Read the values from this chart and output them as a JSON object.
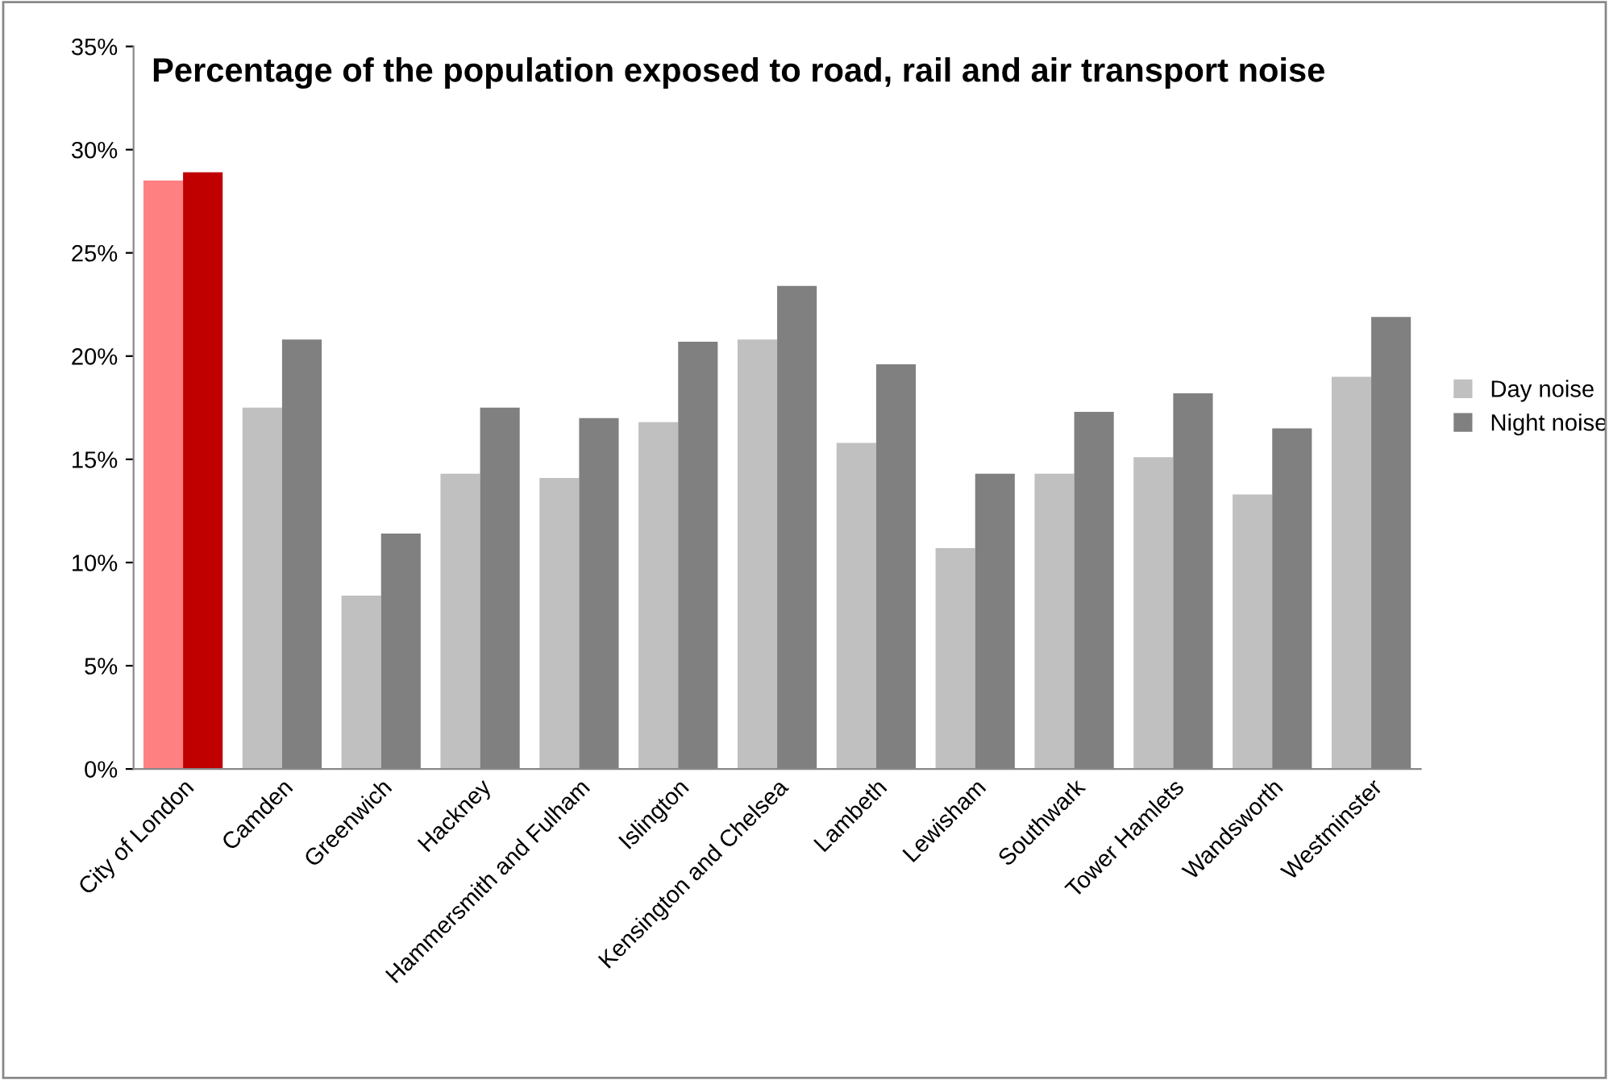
{
  "chart_data": {
    "type": "bar",
    "title": "Percentage of the population exposed to road, rail and air transport noise",
    "categories": [
      "City of London",
      "Camden",
      "Greenwich",
      "Hackney",
      "Hammersmith and Fulham",
      "Islington",
      "Kensington and Chelsea",
      "Lambeth",
      "Lewisham",
      "Southwark",
      "Tower Hamlets",
      "Wandsworth",
      "Westminster"
    ],
    "series": [
      {
        "name": "Day noise",
        "color": "#c0c0c0",
        "colors": [
          "#ff8080",
          "#c0c0c0",
          "#c0c0c0",
          "#c0c0c0",
          "#c0c0c0",
          "#c0c0c0",
          "#c0c0c0",
          "#c0c0c0",
          "#c0c0c0",
          "#c0c0c0",
          "#c0c0c0",
          "#c0c0c0",
          "#c0c0c0"
        ],
        "values": [
          28.5,
          17.5,
          8.4,
          14.3,
          14.1,
          16.8,
          20.8,
          15.8,
          10.7,
          14.3,
          15.1,
          13.3,
          19.0
        ]
      },
      {
        "name": "Night noise",
        "color": "#808080",
        "colors": [
          "#c00000",
          "#808080",
          "#808080",
          "#808080",
          "#808080",
          "#808080",
          "#808080",
          "#808080",
          "#808080",
          "#808080",
          "#808080",
          "#808080",
          "#808080"
        ],
        "values": [
          28.9,
          20.8,
          11.4,
          17.5,
          17.0,
          20.7,
          23.4,
          19.6,
          14.3,
          17.3,
          18.2,
          16.5,
          21.9
        ]
      }
    ],
    "ylim": [
      0,
      35
    ],
    "yticks": [
      {
        "value": 0,
        "label": "0%"
      },
      {
        "value": 5,
        "label": "5%"
      },
      {
        "value": 10,
        "label": "10%"
      },
      {
        "value": 15,
        "label": "15%"
      },
      {
        "value": 20,
        "label": "20%"
      },
      {
        "value": 25,
        "label": "25%"
      },
      {
        "value": 30,
        "label": "30%"
      },
      {
        "value": 35,
        "label": "35%"
      }
    ],
    "grid": false,
    "legend": "right"
  }
}
